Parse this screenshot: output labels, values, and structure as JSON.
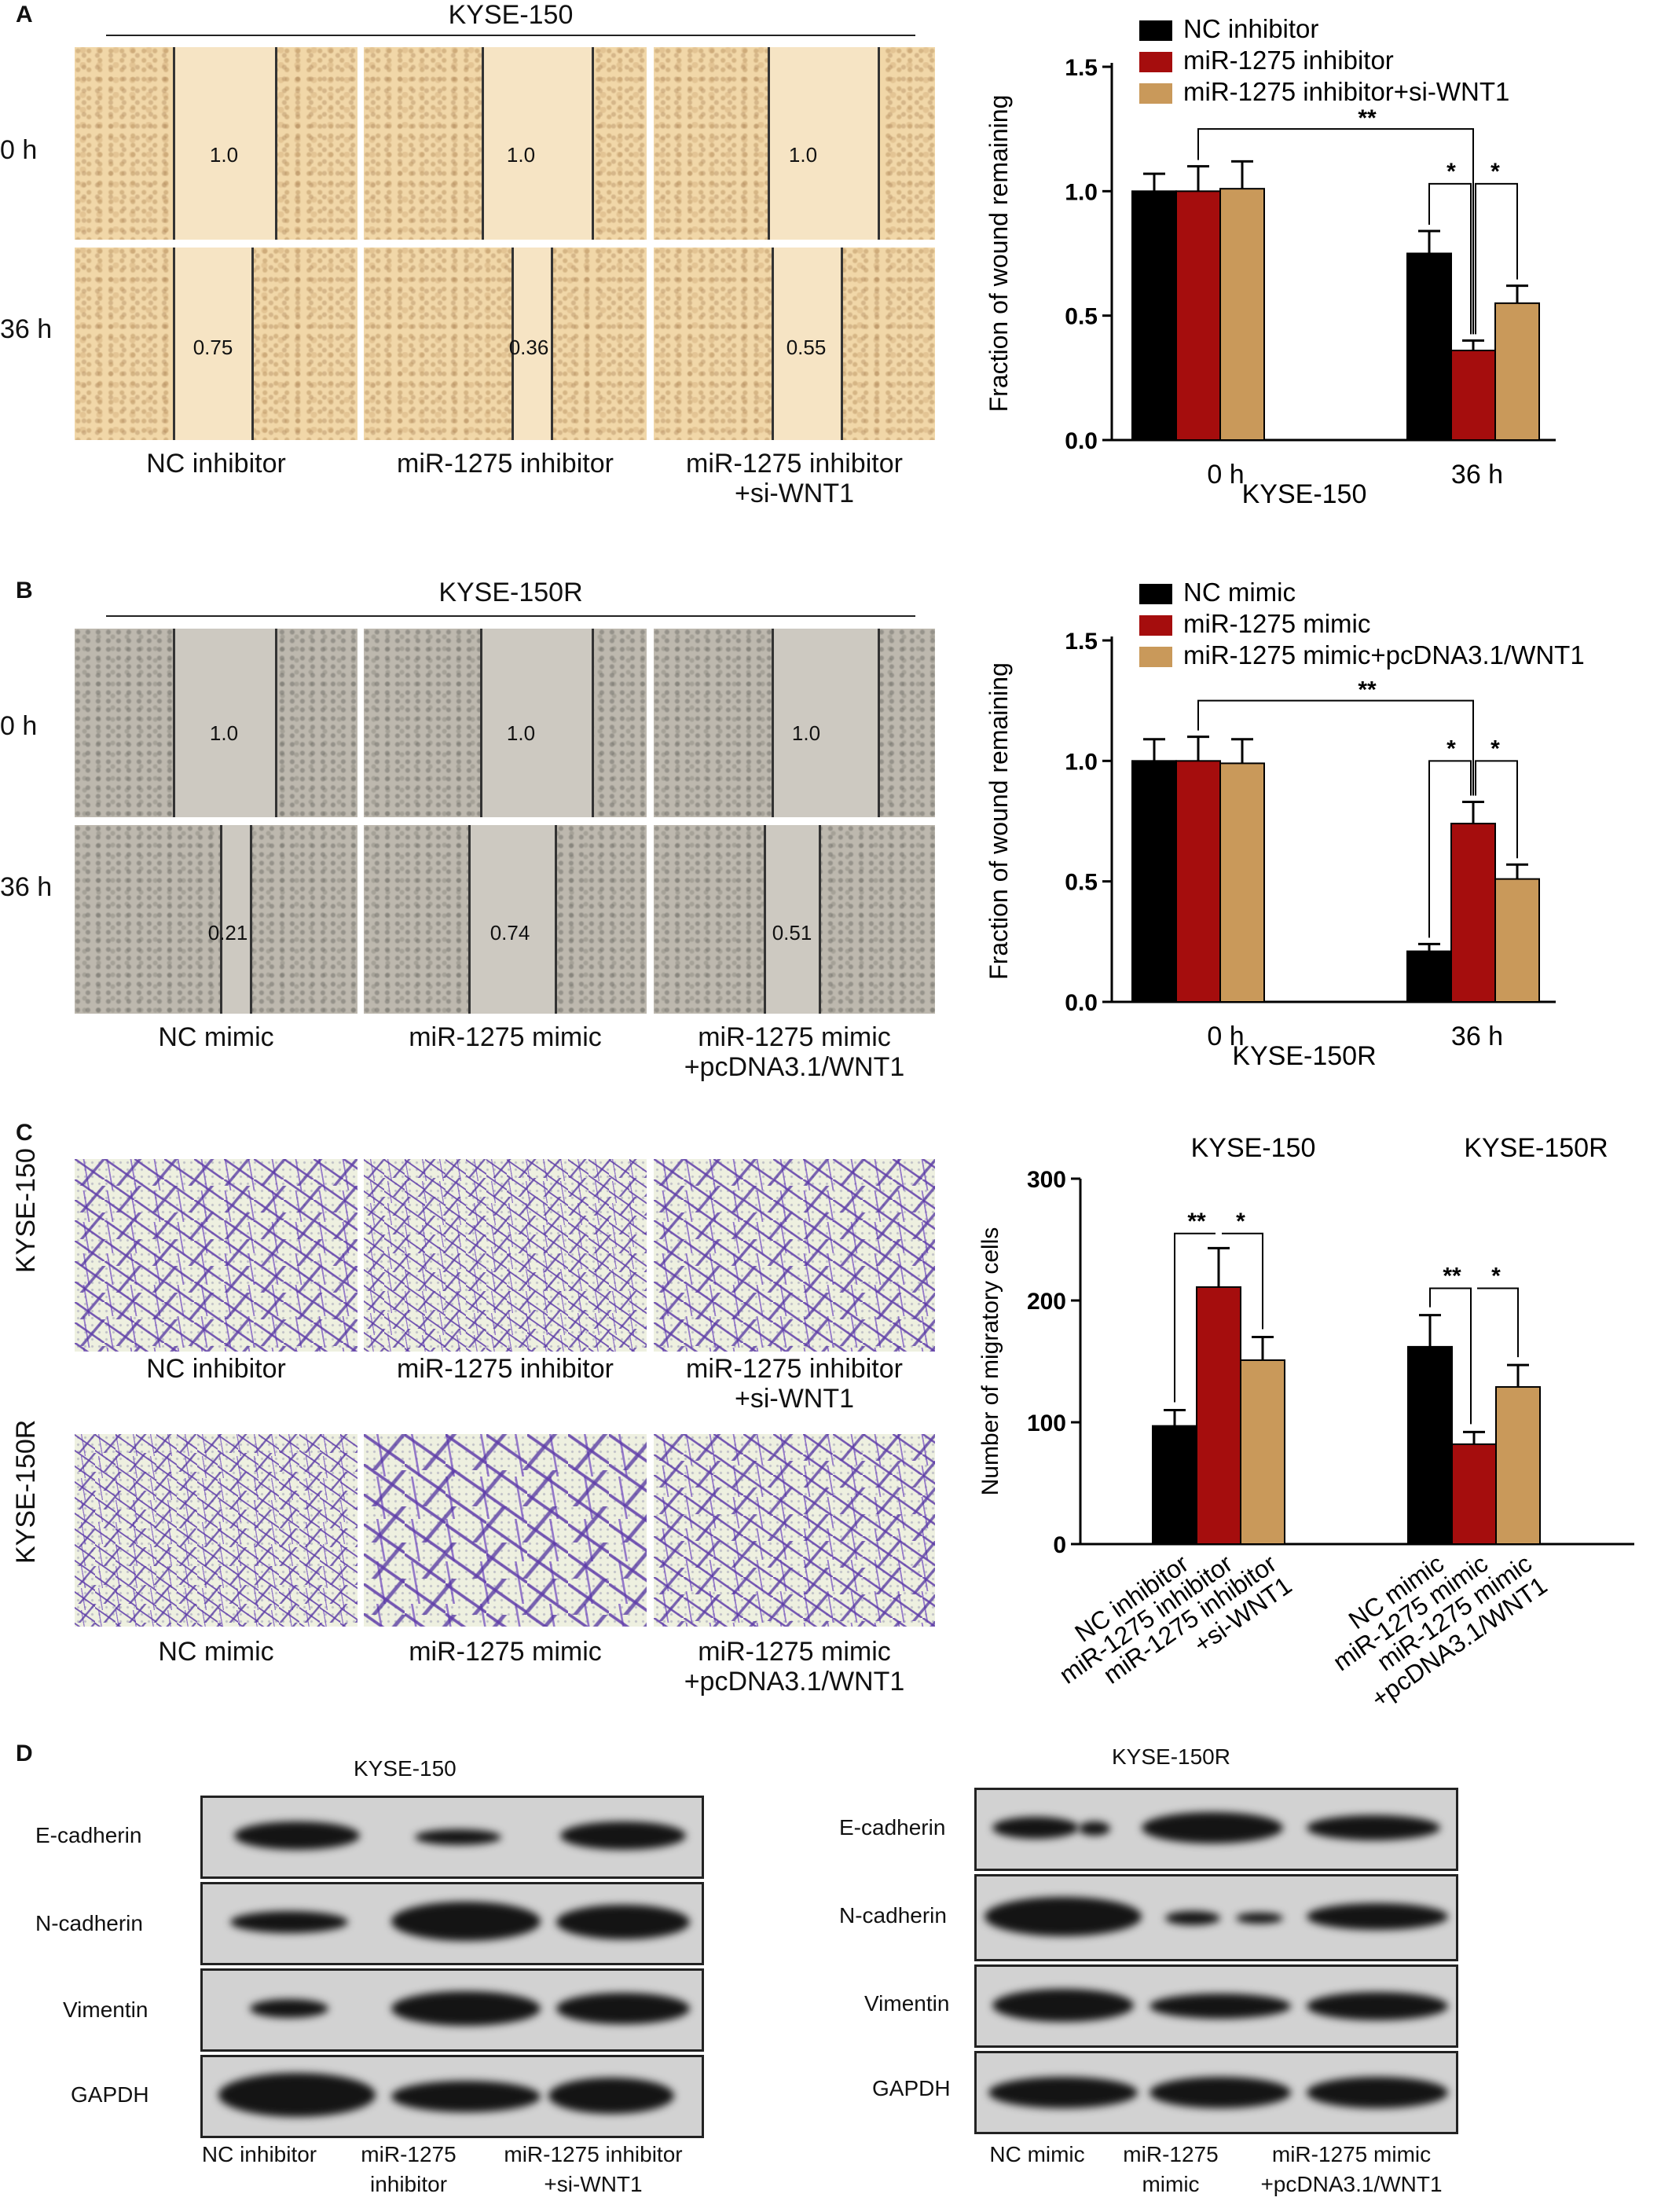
{
  "panels": {
    "A": "A",
    "B": "B",
    "C": "C",
    "D": "D"
  },
  "panelA": {
    "title": "KYSE-150",
    "rows": [
      "0 h",
      "36 h"
    ],
    "captions": [
      "NC inhibitor",
      "miR-1275 inhibitor",
      "miR-1275 inhibitor",
      "+si-WNT1"
    ],
    "ratios_0h": [
      "1.0",
      "1.0",
      "1.0"
    ],
    "ratios_36h": [
      "0.75",
      "0.36",
      "0.55"
    ]
  },
  "panelB": {
    "title": "KYSE-150R",
    "rows": [
      "0 h",
      "36 h"
    ],
    "captions": [
      "NC mimic",
      "miR-1275 mimic",
      "miR-1275 mimic",
      "+pcDNA3.1/WNT1"
    ],
    "ratios_0h": [
      "1.0",
      "1.0",
      "1.0"
    ],
    "ratios_36h": [
      "0.21",
      "0.74",
      "0.51"
    ]
  },
  "panelC": {
    "rows": [
      "KYSE-150",
      "KYSE-150R"
    ],
    "captions_top": [
      "NC inhibitor",
      "miR-1275 inhibitor",
      "miR-1275 inhibitor",
      "+si-WNT1"
    ],
    "captions_bottom": [
      "NC mimic",
      "miR-1275 mimic",
      "miR-1275 mimic",
      "+pcDNA3.1/WNT1"
    ]
  },
  "panelD": {
    "left_title": "KYSE-150",
    "right_title": "KYSE-150R",
    "proteins": [
      "E-cadherin",
      "N-cadherin",
      "Vimentin",
      "GAPDH"
    ],
    "left_captions": [
      "NC inhibitor",
      "miR-1275",
      "inhibitor",
      "miR-1275 inhibitor",
      "+si-WNT1"
    ],
    "right_captions": [
      "NC mimic",
      "miR-1275",
      "mimic",
      "miR-1275 mimic",
      "+pcDNA3.1/WNT1"
    ]
  },
  "chart_data": [
    {
      "type": "bar",
      "panel": "A",
      "categories": [
        "0 h",
        "36 h"
      ],
      "xlabel": "KYSE-150",
      "ylabel": "Fraction of wound remaining",
      "ylim": [
        0,
        1.5
      ],
      "yticks": [
        "0.0",
        "0.5",
        "1.0",
        "1.5"
      ],
      "legend": "top",
      "series": [
        {
          "name": "NC inhibitor",
          "values": [
            1.0,
            0.75
          ],
          "errors": [
            0.07,
            0.09
          ],
          "color": "#000000"
        },
        {
          "name": "miR-1275 inhibitor",
          "values": [
            1.0,
            0.36
          ],
          "errors": [
            0.1,
            0.04
          ],
          "color": "#a50d0d"
        },
        {
          "name": "miR-1275 inhibitor+si-WNT1",
          "values": [
            1.01,
            0.55
          ],
          "errors": [
            0.11,
            0.07
          ],
          "color": "#c9995a"
        }
      ],
      "annotations": [
        "**",
        "*",
        "*"
      ]
    },
    {
      "type": "bar",
      "panel": "B",
      "categories": [
        "0 h",
        "36 h"
      ],
      "xlabel": "KYSE-150R",
      "ylabel": "Fraction of wound remaining",
      "ylim": [
        0,
        1.5
      ],
      "yticks": [
        "0.0",
        "0.5",
        "1.0",
        "1.5"
      ],
      "legend": "top",
      "series": [
        {
          "name": "NC mimic",
          "values": [
            1.0,
            0.21
          ],
          "errors": [
            0.09,
            0.03
          ],
          "color": "#000000"
        },
        {
          "name": "miR-1275 mimic",
          "values": [
            1.0,
            0.74
          ],
          "errors": [
            0.1,
            0.09
          ],
          "color": "#a50d0d"
        },
        {
          "name": "miR-1275 mimic+pcDNA3.1/WNT1",
          "values": [
            0.99,
            0.51
          ],
          "errors": [
            0.1,
            0.06
          ],
          "color": "#c9995a"
        }
      ],
      "annotations": [
        "**",
        "*",
        "*"
      ]
    },
    {
      "type": "bar",
      "panel": "C",
      "groups": [
        "KYSE-150",
        "KYSE-150R"
      ],
      "categories": [
        "NC inhibitor",
        "miR-1275 inhibitor",
        "miR-1275 inhibitor +si-WNT1",
        "NC mimic",
        "miR-1275 mimic",
        "miR-1275 mimic +pcDNA3.1/WNT1"
      ],
      "tick_lines": [
        [
          "NC inhibitor"
        ],
        [
          "miR-1275 inhibitor"
        ],
        [
          "miR-1275 inhibitor",
          "+si-WNT1"
        ],
        [
          "NC mimic"
        ],
        [
          "miR-1275 mimic"
        ],
        [
          "miR-1275 mimic",
          "+pcDNA3.1/WNT1"
        ]
      ],
      "ylabel": "Number of migratory cells",
      "ylim": [
        0,
        300
      ],
      "yticks": [
        "0",
        "100",
        "200",
        "300"
      ],
      "values": [
        97,
        211,
        151,
        162,
        82,
        129
      ],
      "errors": [
        13,
        32,
        19,
        26,
        10,
        18
      ],
      "colors": [
        "#000000",
        "#a50d0d",
        "#c9995a",
        "#000000",
        "#a50d0d",
        "#c9995a"
      ],
      "annotations": [
        "**",
        "*",
        "**",
        "*"
      ]
    }
  ]
}
